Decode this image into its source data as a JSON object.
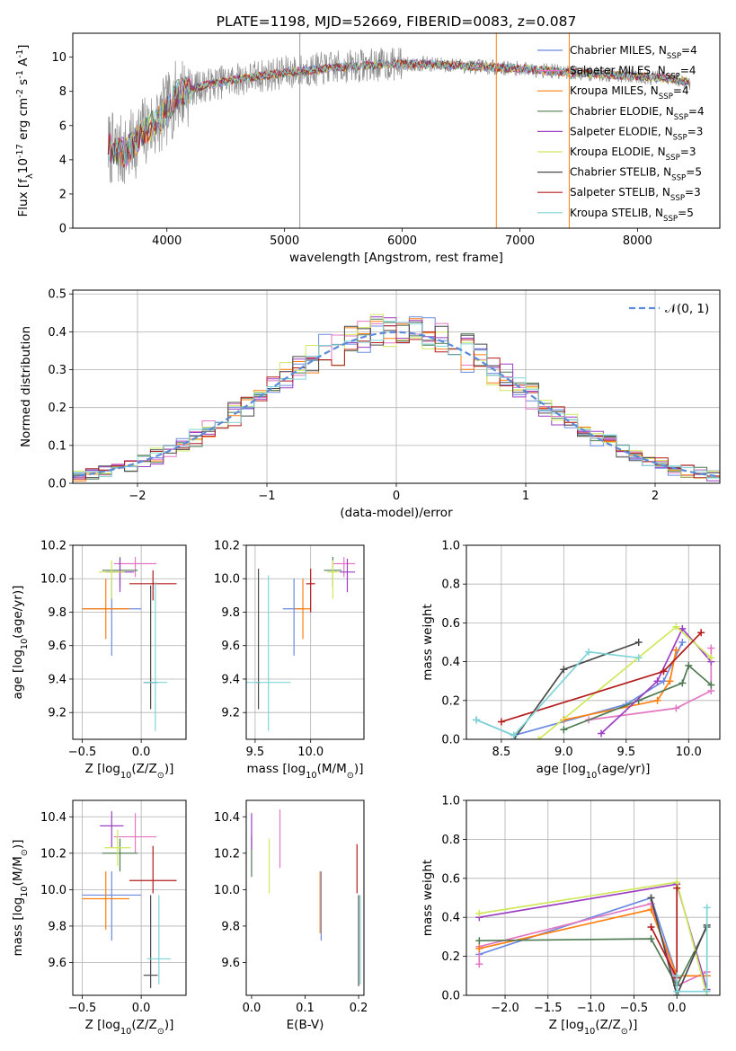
{
  "chart_data": [
    {
      "type": "line",
      "title": "PLATE=1198, MJD=52669, FIBERID=0083, z=0.087",
      "xlabel": "wavelength [Angstrom, rest frame]",
      "ylabel": "Flux [f$_\\lambda$10$^{-17}$ erg cm$^{-2}$ s$^{-1}$ A$^{-1}$]",
      "xlim": [
        3200,
        8700
      ],
      "ylim": [
        0,
        11.4
      ],
      "xticks": [
        "4000",
        "5000",
        "6000",
        "7000",
        "8000"
      ],
      "yticks": [
        "0",
        "2",
        "4",
        "6",
        "8",
        "10"
      ],
      "grid": false,
      "legend_position": "right",
      "data_note": "continuum shape read from the plotted spectrum",
      "continuum": [
        [
          3500,
          4.7
        ],
        [
          3650,
          4.4
        ],
        [
          3800,
          5.6
        ],
        [
          3950,
          6.4
        ],
        [
          4100,
          7.9
        ],
        [
          4300,
          8.3
        ],
        [
          4500,
          8.6
        ],
        [
          4700,
          8.8
        ],
        [
          5000,
          9.1
        ],
        [
          5300,
          9.3
        ],
        [
          5600,
          9.5
        ],
        [
          5900,
          9.6
        ],
        [
          6200,
          9.6
        ],
        [
          6500,
          9.5
        ],
        [
          6800,
          9.4
        ],
        [
          7100,
          9.3
        ],
        [
          7400,
          9.1
        ],
        [
          7700,
          9.0
        ],
        [
          8000,
          8.9
        ],
        [
          8300,
          8.7
        ],
        [
          8450,
          8.5
        ]
      ],
      "spike_lines": [
        {
          "x": 5130,
          "y_low": 0.0,
          "color": "#999999"
        },
        {
          "x": 6800,
          "y_low": 0.0,
          "color": "#ff7f0e"
        },
        {
          "x": 7420,
          "y_low": 0.0,
          "color": "#ff7f0e"
        }
      ],
      "series": [
        {
          "name": "Chabrier MILES, N$_{SSP}$=4",
          "color": "#6b8ae0"
        },
        {
          "name": "Salpeter MILES, N$_{SSP}$=4",
          "color": "#e377c2"
        },
        {
          "name": "Kroupa MILES, N$_{SSP}$=4",
          "color": "#ff7f0e"
        },
        {
          "name": "Chabrier ELODIE, N$_{SSP}$=4",
          "color": "#4f7a52"
        },
        {
          "name": "Salpeter ELODIE, N$_{SSP}$=3",
          "color": "#9b3fc4"
        },
        {
          "name": "Kroupa ELODIE, N$_{SSP}$=3",
          "color": "#cfe85c"
        },
        {
          "name": "Chabrier STELIB, N$_{SSP}$=5",
          "color": "#4a4a4a"
        },
        {
          "name": "Salpeter STELIB, N$_{SSP}$=3",
          "color": "#b31b1b"
        },
        {
          "name": "Kroupa STELIB, N$_{SSP}$=5",
          "color": "#7fd4d8"
        }
      ]
    },
    {
      "type": "histogram",
      "xlabel": "(data-model)/error",
      "ylabel": "Normed distribution",
      "xlim": [
        -2.5,
        2.5
      ],
      "ylim": [
        0,
        0.51
      ],
      "xticks": [
        "−2",
        "−1",
        "0",
        "1",
        "2"
      ],
      "yticks": [
        "0.0",
        "0.1",
        "0.2",
        "0.3",
        "0.4",
        "0.5"
      ],
      "grid": true,
      "legend": {
        "label": "$\\mathcal{N}(0, 1)$",
        "position": "top-right",
        "style": "dashed",
        "color": "#5b8bd9"
      },
      "bin_width": 0.1,
      "series": [
        {
          "name": "Chabrier MILES",
          "color": "#6b8ae0"
        },
        {
          "name": "Salpeter MILES",
          "color": "#e377c2"
        },
        {
          "name": "Kroupa MILES",
          "color": "#ff7f0e"
        },
        {
          "name": "Chabrier ELODIE",
          "color": "#4f7a52"
        },
        {
          "name": "Salpeter ELODIE",
          "color": "#9b3fc4"
        },
        {
          "name": "Kroupa ELODIE",
          "color": "#cfe85c"
        },
        {
          "name": "Chabrier STELIB",
          "color": "#4a4a4a"
        },
        {
          "name": "Salpeter STELIB",
          "color": "#b31b1b"
        },
        {
          "name": "Kroupa STELIB",
          "color": "#7fd4d8"
        }
      ]
    },
    {
      "type": "errorbar",
      "xlabel": "Z [log$_{10}$(Z/Z$_\\odot$)]",
      "ylabel": "age  [log$_{10}$(age/yr)]",
      "xlim": [
        -0.58,
        0.38
      ],
      "ylim": [
        9.04,
        10.2
      ],
      "xticks": [
        "−0.5",
        "0.0"
      ],
      "yticks": [
        "9.2",
        "9.4",
        "9.6",
        "9.8",
        "10.0",
        "10.2"
      ],
      "grid": true,
      "points": [
        {
          "x": -0.25,
          "xerr": 0.25,
          "y": 9.82,
          "ylo": 9.54,
          "yhi": 10.0,
          "color": "#6b8ae0"
        },
        {
          "x": -0.05,
          "xerr": 0.18,
          "y": 10.09,
          "ylo": 10.01,
          "yhi": 10.13,
          "color": "#e377c2"
        },
        {
          "x": -0.3,
          "xerr": 0.2,
          "y": 9.82,
          "ylo": 9.64,
          "yhi": 10.0,
          "color": "#ff7f0e"
        },
        {
          "x": -0.18,
          "xerr": 0.15,
          "y": 10.05,
          "ylo": 9.95,
          "yhi": 10.13,
          "color": "#4f7a52"
        },
        {
          "x": -0.18,
          "xerr": 0.12,
          "y": 10.04,
          "ylo": 9.92,
          "yhi": 10.12,
          "color": "#9b3fc4"
        },
        {
          "x": -0.25,
          "xerr": 0.11,
          "y": 10.04,
          "ylo": 9.88,
          "yhi": 10.11,
          "color": "#cfe85c"
        },
        {
          "x": 0.08,
          "xerr": 0.06,
          "y": 9.38,
          "ylo": 9.22,
          "yhi": 9.96,
          "color": "#4a4a4a"
        },
        {
          "x": 0.1,
          "xerr": 0.2,
          "y": 9.97,
          "ylo": 9.87,
          "yhi": 10.05,
          "color": "#b31b1b"
        },
        {
          "x": 0.12,
          "xerr": 0.1,
          "y": 9.38,
          "ylo": 9.09,
          "yhi": 9.98,
          "color": "#7fd4d8"
        }
      ]
    },
    {
      "type": "errorbar",
      "xlabel": "mass [log$_{10}$(M/M$_\\odot$)]",
      "ylabel": "",
      "xlim": [
        9.42,
        10.48
      ],
      "ylim": [
        9.04,
        10.2
      ],
      "xticks": [
        "9.5",
        "10.0"
      ],
      "yticks": [
        "9.2",
        "9.4",
        "9.6",
        "9.8",
        "10.0",
        "10.2"
      ],
      "grid": true,
      "points": [
        {
          "x": 9.85,
          "xerr": 0.1,
          "y": 9.82,
          "ylo": 9.54,
          "yhi": 10.0,
          "color": "#6b8ae0"
        },
        {
          "x": 10.3,
          "xerr": 0.1,
          "y": 10.09,
          "ylo": 10.01,
          "yhi": 10.13,
          "color": "#e377c2"
        },
        {
          "x": 9.93,
          "xerr": 0.07,
          "y": 9.82,
          "ylo": 9.64,
          "yhi": 10.0,
          "color": "#ff7f0e"
        },
        {
          "x": 10.2,
          "xerr": 0.08,
          "y": 10.05,
          "ylo": 9.95,
          "yhi": 10.13,
          "color": "#4f7a52"
        },
        {
          "x": 10.33,
          "xerr": 0.07,
          "y": 10.04,
          "ylo": 9.92,
          "yhi": 10.12,
          "color": "#9b3fc4"
        },
        {
          "x": 10.2,
          "xerr": 0.05,
          "y": 10.04,
          "ylo": 9.88,
          "yhi": 10.11,
          "color": "#cfe85c"
        },
        {
          "x": 9.53,
          "xerr": 0.02,
          "y": 9.38,
          "ylo": 9.22,
          "yhi": 10.06,
          "color": "#4a4a4a"
        },
        {
          "x": 10.0,
          "xerr": 0.04,
          "y": 9.97,
          "ylo": 9.8,
          "yhi": 10.06,
          "color": "#b31b1b"
        },
        {
          "x": 9.62,
          "xerr": 0.2,
          "y": 9.38,
          "ylo": 9.09,
          "yhi": 10.02,
          "color": "#7fd4d8"
        }
      ]
    },
    {
      "type": "line",
      "xlabel": "age  [log$_{10}$(age/yr)]",
      "ylabel": "mass weight",
      "xlim": [
        8.22,
        10.25
      ],
      "ylim": [
        0,
        1.0
      ],
      "xticks": [
        "8.5",
        "9.0",
        "9.5",
        "10.0"
      ],
      "yticks": [
        "0.0",
        "0.2",
        "0.4",
        "0.6",
        "0.8",
        "1.0"
      ],
      "grid": true,
      "series": [
        {
          "name": "Chabrier MILES",
          "color": "#6b8ae0",
          "x": [
            8.3,
            8.6,
            9.5,
            9.8,
            9.95
          ],
          "y": [
            0.1,
            0.02,
            0.18,
            0.3,
            0.5
          ]
        },
        {
          "name": "Salpeter MILES",
          "color": "#e377c2",
          "x": [
            9.2,
            9.9,
            10.18,
            10.18
          ],
          "y": [
            0.1,
            0.16,
            0.25,
            0.47
          ]
        },
        {
          "name": "Kroupa MILES",
          "color": "#ff7f0e",
          "x": [
            9.0,
            9.75,
            9.85,
            9.9
          ],
          "y": [
            0.1,
            0.2,
            0.3,
            0.46
          ]
        },
        {
          "name": "Chabrier ELODIE",
          "color": "#4f7a52",
          "x": [
            9.0,
            9.6,
            9.95,
            10.0,
            10.18
          ],
          "y": [
            0.05,
            0.2,
            0.29,
            0.38,
            0.28
          ]
        },
        {
          "name": "Salpeter ELODIE",
          "color": "#9b3fc4",
          "x": [
            9.3,
            9.75,
            9.95,
            10.18
          ],
          "y": [
            0.03,
            0.3,
            0.57,
            0.4
          ]
        },
        {
          "name": "Kroupa ELODIE",
          "color": "#cfe85c",
          "x": [
            8.8,
            9.9,
            10.18
          ],
          "y": [
            0.0,
            0.58,
            0.42
          ]
        },
        {
          "name": "Chabrier STELIB",
          "color": "#4a4a4a",
          "x": [
            8.6,
            9.0,
            9.6
          ],
          "y": [
            0.0,
            0.36,
            0.5
          ]
        },
        {
          "name": "Salpeter STELIB",
          "color": "#b31b1b",
          "x": [
            8.5,
            9.8,
            10.1
          ],
          "y": [
            0.09,
            0.35,
            0.55
          ]
        },
        {
          "name": "Kroupa STELIB",
          "color": "#7fd4d8",
          "x": [
            8.3,
            8.6,
            9.2,
            9.6
          ],
          "y": [
            0.1,
            0.02,
            0.45,
            0.42
          ]
        }
      ]
    },
    {
      "type": "errorbar",
      "xlabel": "Z [log$_{10}$(Z/Z$_\\odot$)]",
      "ylabel": "mass [log$_{10}$(M/M$_\\odot$)]",
      "xlim": [
        -0.58,
        0.38
      ],
      "ylim": [
        9.42,
        10.49
      ],
      "xticks": [
        "−0.5",
        "0.0"
      ],
      "yticks": [
        "9.6",
        "9.8",
        "10.0",
        "10.2",
        "10.4"
      ],
      "grid": true,
      "points": [
        {
          "x": -0.25,
          "xerr": 0.25,
          "y": 9.97,
          "ylo": 9.72,
          "yhi": 10.1,
          "color": "#6b8ae0"
        },
        {
          "x": -0.05,
          "xerr": 0.18,
          "y": 10.29,
          "ylo": 10.2,
          "yhi": 10.42,
          "color": "#e377c2"
        },
        {
          "x": -0.3,
          "xerr": 0.2,
          "y": 9.95,
          "ylo": 9.78,
          "yhi": 10.1,
          "color": "#ff7f0e"
        },
        {
          "x": -0.18,
          "xerr": 0.15,
          "y": 10.2,
          "ylo": 10.1,
          "yhi": 10.28,
          "color": "#4f7a52"
        },
        {
          "x": -0.25,
          "xerr": 0.1,
          "y": 10.35,
          "ylo": 10.23,
          "yhi": 10.43,
          "color": "#9b3fc4"
        },
        {
          "x": -0.2,
          "xerr": 0.11,
          "y": 10.23,
          "ylo": 10.13,
          "yhi": 10.33,
          "color": "#cfe85c"
        },
        {
          "x": 0.08,
          "xerr": 0.06,
          "y": 9.53,
          "ylo": 9.46,
          "yhi": 9.97,
          "color": "#4a4a4a"
        },
        {
          "x": 0.1,
          "xerr": 0.2,
          "y": 10.05,
          "ylo": 9.98,
          "yhi": 10.24,
          "color": "#b31b1b"
        },
        {
          "x": 0.15,
          "xerr": 0.1,
          "y": 9.62,
          "ylo": 9.48,
          "yhi": 9.97,
          "color": "#7fd4d8"
        }
      ]
    },
    {
      "type": "errorbar",
      "xlabel": "E(B-V)",
      "ylabel": "",
      "xlim": [
        -0.01,
        0.21
      ],
      "ylim": [
        9.42,
        10.49
      ],
      "xticks": [
        "0.0",
        "0.1",
        "0.2"
      ],
      "yticks": [
        "9.6",
        "9.8",
        "10.0",
        "10.2",
        "10.4"
      ],
      "grid": false,
      "points": [
        {
          "x": 0.13,
          "xerr": 0.0,
          "y": 9.9,
          "ylo": 9.72,
          "yhi": 10.1,
          "color": "#6b8ae0"
        },
        {
          "x": 0.053,
          "xerr": 0.0,
          "y": 10.28,
          "ylo": 10.12,
          "yhi": 10.44,
          "color": "#e377c2"
        },
        {
          "x": 0.128,
          "xerr": 0.0,
          "y": 9.93,
          "ylo": 9.76,
          "yhi": 10.1,
          "color": "#ff7f0e"
        },
        {
          "x": 0.0,
          "xerr": 0.0,
          "y": 10.2,
          "ylo": 10.07,
          "yhi": 10.3,
          "color": "#4f7a52"
        },
        {
          "x": 0.0,
          "xerr": 0.0,
          "y": 10.32,
          "ylo": 10.22,
          "yhi": 10.42,
          "color": "#9b3fc4"
        },
        {
          "x": 0.033,
          "xerr": 0.0,
          "y": 10.12,
          "ylo": 9.98,
          "yhi": 10.28,
          "color": "#cfe85c"
        },
        {
          "x": 0.2,
          "xerr": 0.0,
          "y": 9.7,
          "ylo": 9.47,
          "yhi": 9.97,
          "color": "#4a4a4a"
        },
        {
          "x": 0.197,
          "xerr": 0.0,
          "y": 10.05,
          "ylo": 9.98,
          "yhi": 10.25,
          "color": "#b31b1b"
        },
        {
          "x": 0.203,
          "xerr": 0.0,
          "y": 9.7,
          "ylo": 9.48,
          "yhi": 9.97,
          "color": "#7fd4d8"
        }
      ]
    },
    {
      "type": "line",
      "xlabel": "Z [log$_{10}$(Z/Z$_\\odot$)]",
      "ylabel": "mass weight",
      "xlim": [
        -2.45,
        0.5
      ],
      "ylim": [
        0,
        1.0
      ],
      "xticks": [
        "−2.0",
        "−1.5",
        "−1.0",
        "−0.5",
        "0.0"
      ],
      "yticks": [
        "0.0",
        "0.2",
        "0.4",
        "0.6",
        "0.8",
        "1.0"
      ],
      "grid": true,
      "series": [
        {
          "name": "Chabrier MILES",
          "color": "#6b8ae0",
          "x": [
            -2.3,
            -0.3,
            0.0,
            0.35
          ],
          "y": [
            0.21,
            0.5,
            0.1,
            0.1
          ]
        },
        {
          "name": "Salpeter MILES",
          "color": "#e377c2",
          "x": [
            -2.3,
            -2.3,
            -0.3,
            0.0,
            0.35
          ],
          "y": [
            0.16,
            0.25,
            0.47,
            0.05,
            0.12
          ]
        },
        {
          "name": "Kroupa MILES",
          "color": "#ff7f0e",
          "x": [
            -2.3,
            -0.3,
            0.0,
            0.35
          ],
          "y": [
            0.24,
            0.44,
            0.1,
            0.1
          ]
        },
        {
          "name": "Chabrier ELODIE",
          "color": "#4f7a52",
          "x": [
            -2.3,
            -0.3,
            0.0,
            0.35
          ],
          "y": [
            0.28,
            0.29,
            0.05,
            0.35
          ]
        },
        {
          "name": "Salpeter ELODIE",
          "color": "#9b3fc4",
          "x": [
            -2.3,
            0.0,
            0.35
          ],
          "y": [
            0.4,
            0.57,
            0.03
          ]
        },
        {
          "name": "Kroupa ELODIE",
          "color": "#cfe85c",
          "x": [
            -2.3,
            0.0,
            0.35
          ],
          "y": [
            0.42,
            0.58,
            0.0
          ]
        },
        {
          "name": "Chabrier STELIB",
          "color": "#4a4a4a",
          "x": [
            -0.3,
            0.0,
            0.35
          ],
          "y": [
            0.5,
            0.0,
            0.36
          ]
        },
        {
          "name": "Salpeter STELIB",
          "color": "#b31b1b",
          "x": [
            -0.3,
            0.0,
            0.0
          ],
          "y": [
            0.35,
            0.09,
            0.55
          ]
        },
        {
          "name": "Kroupa STELIB",
          "color": "#7fd4d8",
          "x": [
            0.0,
            0.0,
            0.35,
            0.35
          ],
          "y": [
            0.1,
            0.02,
            0.02,
            0.45
          ]
        }
      ]
    }
  ]
}
